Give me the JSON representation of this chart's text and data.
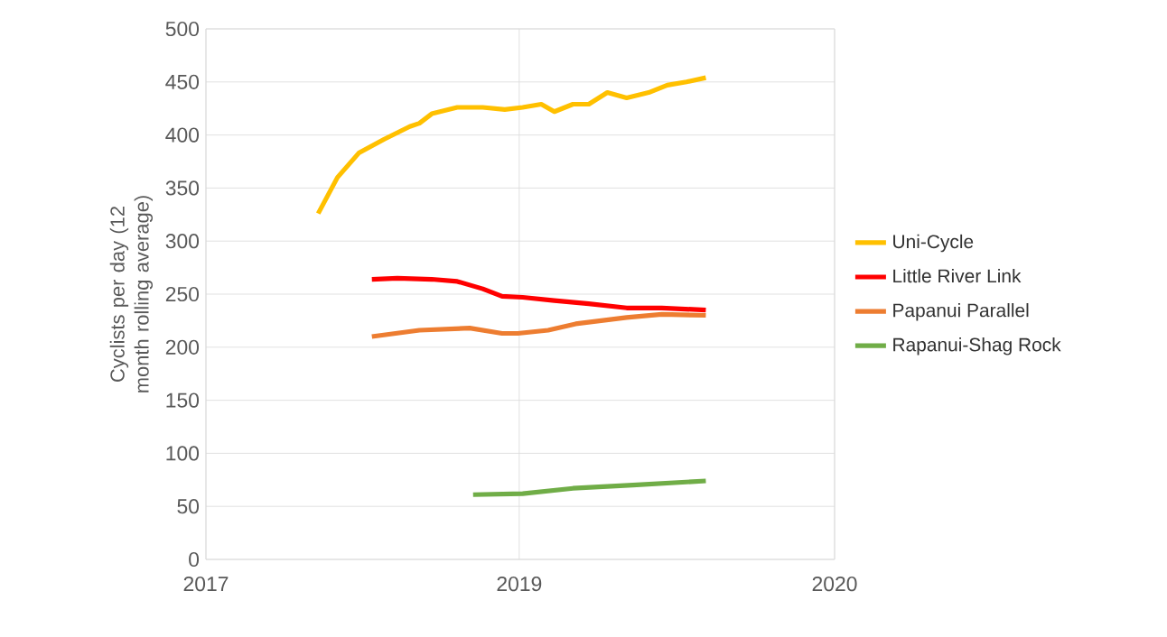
{
  "chart_data": {
    "type": "line",
    "ylabel": "Cyclists per day (12 month rolling average)",
    "xlim": [
      "2017-12-01",
      "2020-06-01"
    ],
    "xticks": [
      {
        "value": "2017-12-01",
        "label": "2017"
      },
      {
        "value": "2019-03-01",
        "label": "2019"
      },
      {
        "value": "2020-06-01",
        "label": "2020"
      }
    ],
    "ylim": [
      0,
      500
    ],
    "yticks": [
      0,
      50,
      100,
      150,
      200,
      250,
      300,
      350,
      400,
      450,
      500
    ],
    "grid": true,
    "legend": "right",
    "marker": "none",
    "line_style": "solid",
    "series": [
      {
        "name": "Uni-Cycle",
        "color": "#ffc000",
        "x": [
          "2018-05-13",
          "2018-06-10",
          "2018-07-11",
          "2018-08-17",
          "2018-09-23",
          "2018-10-07",
          "2018-10-25",
          "2018-12-01",
          "2019-01-07",
          "2019-02-08",
          "2019-03-06",
          "2019-04-02",
          "2019-04-21",
          "2019-05-18",
          "2019-06-10",
          "2019-07-07",
          "2019-08-04",
          "2019-09-05",
          "2019-10-02",
          "2019-10-30",
          "2019-11-27"
        ],
        "values": [
          326,
          360,
          383,
          396,
          408,
          411,
          420,
          426,
          426,
          424,
          426,
          429,
          422,
          429,
          429,
          440,
          435,
          440,
          447,
          450,
          454
        ]
      },
      {
        "name": "Little River Link",
        "color": "#ff0000",
        "x": [
          "2018-07-30",
          "2018-09-05",
          "2018-10-25",
          "2018-12-01",
          "2019-01-07",
          "2019-02-04",
          "2019-03-06",
          "2019-04-21",
          "2019-06-10",
          "2019-08-04",
          "2019-09-24",
          "2019-11-27"
        ],
        "values": [
          264,
          265,
          264,
          262,
          255,
          248,
          247,
          244,
          241,
          237,
          237,
          235
        ]
      },
      {
        "name": "Papanui Parallel",
        "color": "#ed7d31",
        "x": [
          "2018-07-30",
          "2018-10-07",
          "2018-12-19",
          "2019-02-04",
          "2019-02-27",
          "2019-04-12",
          "2019-05-22",
          "2019-08-04",
          "2019-09-24",
          "2019-11-27"
        ],
        "values": [
          210,
          216,
          218,
          213,
          213,
          216,
          222,
          228,
          231,
          230
        ]
      },
      {
        "name": "Rapanui-Shag Rock",
        "color": "#70ad47",
        "x": [
          "2018-12-24",
          "2019-03-06",
          "2019-05-18",
          "2019-08-13",
          "2019-11-27"
        ],
        "values": [
          61,
          62,
          67,
          70,
          74
        ]
      }
    ]
  }
}
